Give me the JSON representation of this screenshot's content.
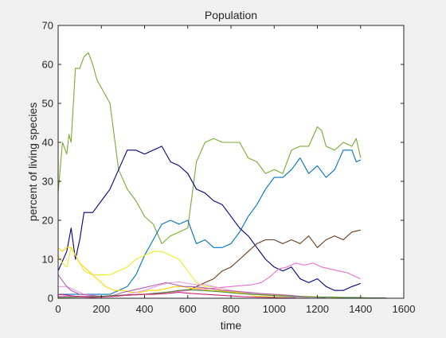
{
  "chart_data": {
    "type": "line",
    "title": "Population",
    "xlabel": "time",
    "ylabel": "percent of living species",
    "xlim": [
      0,
      1600
    ],
    "ylim": [
      0,
      70
    ],
    "xticks": [
      0,
      200,
      400,
      600,
      800,
      1000,
      1200,
      1400,
      1600
    ],
    "yticks": [
      0,
      10,
      20,
      30,
      40,
      50,
      60,
      70
    ],
    "grid": false,
    "legend": "none",
    "series": [
      {
        "color": "#77ac30",
        "x": [
          0,
          20,
          40,
          50,
          60,
          80,
          100,
          120,
          140,
          160,
          180,
          200,
          240,
          280,
          320,
          360,
          400,
          440,
          480,
          520,
          560,
          600,
          640,
          680,
          720,
          760,
          800,
          840,
          880,
          920,
          960,
          1000,
          1040,
          1080,
          1120,
          1160,
          1200,
          1220,
          1240,
          1280,
          1320,
          1360,
          1380,
          1400
        ],
        "y": [
          27,
          40,
          37,
          42,
          40,
          59,
          59,
          62,
          63,
          60,
          56,
          54,
          50,
          33,
          28,
          25,
          21,
          19,
          14,
          16,
          17,
          18,
          35,
          40,
          41,
          40,
          40,
          40,
          36,
          35,
          32,
          33,
          32,
          38,
          39,
          39,
          44,
          43,
          39,
          38,
          40,
          39,
          41,
          36
        ]
      },
      {
        "color": "#0072bd",
        "x": [
          0,
          40,
          80,
          100,
          140,
          200,
          240,
          280,
          320,
          360,
          400,
          440,
          480,
          520,
          560,
          600,
          640,
          680,
          720,
          760,
          800,
          840,
          880,
          920,
          960,
          1000,
          1040,
          1080,
          1120,
          1160,
          1200,
          1240,
          1280,
          1320,
          1360,
          1380,
          1400
        ],
        "y": [
          1,
          1,
          1,
          1,
          1,
          1,
          1,
          2,
          3,
          6,
          11,
          15,
          19,
          20,
          19,
          20,
          14,
          15,
          13,
          13,
          14,
          17,
          21,
          24,
          28,
          31,
          31,
          33,
          36,
          32,
          34,
          31,
          33,
          38,
          38,
          35,
          35.5
        ]
      },
      {
        "color": "#000080",
        "x": [
          0,
          40,
          60,
          80,
          100,
          120,
          160,
          200,
          240,
          280,
          320,
          360,
          400,
          440,
          480,
          520,
          560,
          600,
          640,
          680,
          720,
          760,
          800,
          840,
          880,
          920,
          960,
          1000,
          1040,
          1080,
          1120,
          1160,
          1200,
          1240,
          1280,
          1320,
          1360,
          1400
        ],
        "y": [
          7,
          12,
          18,
          10,
          15,
          22,
          22,
          25,
          28,
          33,
          38,
          38,
          37,
          38,
          39,
          35,
          34,
          32,
          28,
          27,
          25,
          24,
          21,
          18,
          16,
          13,
          10,
          8,
          7,
          8,
          5,
          4,
          5,
          3,
          2,
          2,
          3,
          3.8
        ]
      },
      {
        "color": "#6b3a1e",
        "x": [
          0,
          100,
          200,
          300,
          400,
          500,
          600,
          640,
          680,
          720,
          760,
          800,
          840,
          880,
          920,
          960,
          1000,
          1040,
          1080,
          1120,
          1160,
          1200,
          1240,
          1280,
          1320,
          1360,
          1400
        ],
        "y": [
          0.5,
          0.5,
          0.5,
          0.7,
          1,
          1.5,
          2,
          3,
          4,
          5,
          7,
          8,
          10,
          12,
          14,
          15,
          15,
          14,
          15,
          14,
          16,
          13,
          15,
          16,
          15,
          17,
          17.5
        ]
      },
      {
        "color": "#ecec2a",
        "x": [
          0,
          20,
          40,
          60,
          80,
          100,
          120,
          160,
          200,
          240,
          280,
          320,
          360,
          400,
          440,
          480,
          520,
          560,
          600,
          640,
          680,
          720,
          760,
          800,
          840,
          880,
          920,
          960,
          1000,
          1040,
          1080
        ],
        "y": [
          11,
          9,
          8,
          13,
          11,
          9,
          7,
          6,
          6,
          6,
          7,
          8,
          10,
          11,
          12,
          12,
          11,
          10,
          7,
          4,
          3,
          3,
          2,
          2,
          1.5,
          1,
          0.5,
          0.5,
          0.3,
          0.2,
          0.1
        ]
      },
      {
        "color": "#ffd700",
        "x": [
          0,
          20,
          40,
          60,
          80,
          100,
          140,
          180,
          220,
          260,
          300,
          340,
          380,
          420,
          460,
          500,
          540,
          580,
          620,
          660,
          700,
          760,
          820,
          880,
          940,
          1000,
          1060,
          1120,
          1180,
          1240,
          1300,
          1360,
          1400
        ],
        "y": [
          13,
          12,
          13,
          13,
          11,
          9,
          7,
          5,
          3,
          2,
          2,
          1.5,
          1.5,
          2,
          2,
          2.5,
          3,
          3,
          2.5,
          2.5,
          2,
          1.8,
          1.5,
          1.2,
          1,
          0.8,
          0.6,
          0.5,
          0.4,
          0.3,
          0.2,
          0.2,
          0.2
        ]
      },
      {
        "color": "#f070d0",
        "x": [
          0,
          100,
          200,
          300,
          400,
          500,
          600,
          700,
          800,
          900,
          940,
          980,
          1020,
          1060,
          1100,
          1140,
          1180,
          1220,
          1260,
          1300,
          1340,
          1380,
          1400
        ],
        "y": [
          0.5,
          0.5,
          0.5,
          0.7,
          1,
          1.5,
          2,
          2.5,
          3,
          3.5,
          4,
          5.5,
          7.5,
          8,
          9,
          8.5,
          9,
          8,
          7.5,
          7,
          6.5,
          5.5,
          5
        ]
      },
      {
        "color": "#e5a0e0",
        "x": [
          0,
          40,
          80,
          120,
          160,
          200,
          240,
          280,
          320,
          360,
          400,
          440,
          480,
          520,
          560,
          600,
          640,
          680,
          720,
          760,
          800,
          860,
          920,
          980,
          1040,
          1100,
          1160
        ],
        "y": [
          3,
          3,
          2,
          1,
          0.8,
          0.5,
          0.5,
          0.5,
          1,
          1.5,
          2,
          2.8,
          3.5,
          4,
          4.2,
          3.8,
          3.5,
          3.5,
          3,
          2.5,
          2,
          1.5,
          1,
          0.8,
          0.5,
          0.3,
          0.2
        ]
      },
      {
        "color": "#b05fb0",
        "x": [
          0,
          20,
          40,
          60,
          80,
          100,
          140,
          180,
          220,
          260,
          300,
          340,
          380,
          420,
          460,
          500,
          540,
          580,
          620,
          660,
          700,
          760,
          820,
          880,
          940,
          1000,
          1060,
          1120,
          1180,
          1240
        ],
        "y": [
          6,
          4.5,
          3,
          2,
          1.5,
          1,
          0.8,
          0.5,
          0.5,
          0.8,
          1.5,
          2,
          2.5,
          3,
          3.5,
          4,
          3.5,
          3,
          3,
          2.8,
          2.5,
          2,
          1.8,
          1.5,
          1.2,
          1,
          0.8,
          0.5,
          0.3,
          0.2
        ]
      },
      {
        "color": "#4b8a3a",
        "x": [
          0,
          100,
          200,
          300,
          400,
          500,
          560,
          600,
          660,
          720,
          780,
          840,
          900,
          960,
          1020,
          1080,
          1140,
          1200,
          1260,
          1320,
          1380,
          1440,
          1500,
          1520
        ],
        "y": [
          0.2,
          0.3,
          0.5,
          0.8,
          1,
          1.5,
          2,
          2.2,
          2,
          1.8,
          1.5,
          1.2,
          1,
          0.8,
          0.6,
          0.5,
          0.4,
          0.3,
          0.3,
          0.2,
          0.2,
          0.1,
          0.1,
          0.1
        ]
      },
      {
        "color": "#cc2277",
        "x": [
          0,
          40,
          80,
          120,
          160,
          200,
          260,
          320,
          380,
          440,
          500,
          560,
          620,
          680,
          740,
          800,
          860,
          920,
          980,
          1040,
          1100
        ],
        "y": [
          1,
          0.8,
          0.5,
          0.3,
          0.2,
          0.3,
          0.5,
          0.8,
          1,
          1,
          1.2,
          1.5,
          1.2,
          1,
          0.8,
          0.6,
          0.4,
          0.3,
          0.2,
          0.1,
          0.1
        ]
      }
    ]
  }
}
